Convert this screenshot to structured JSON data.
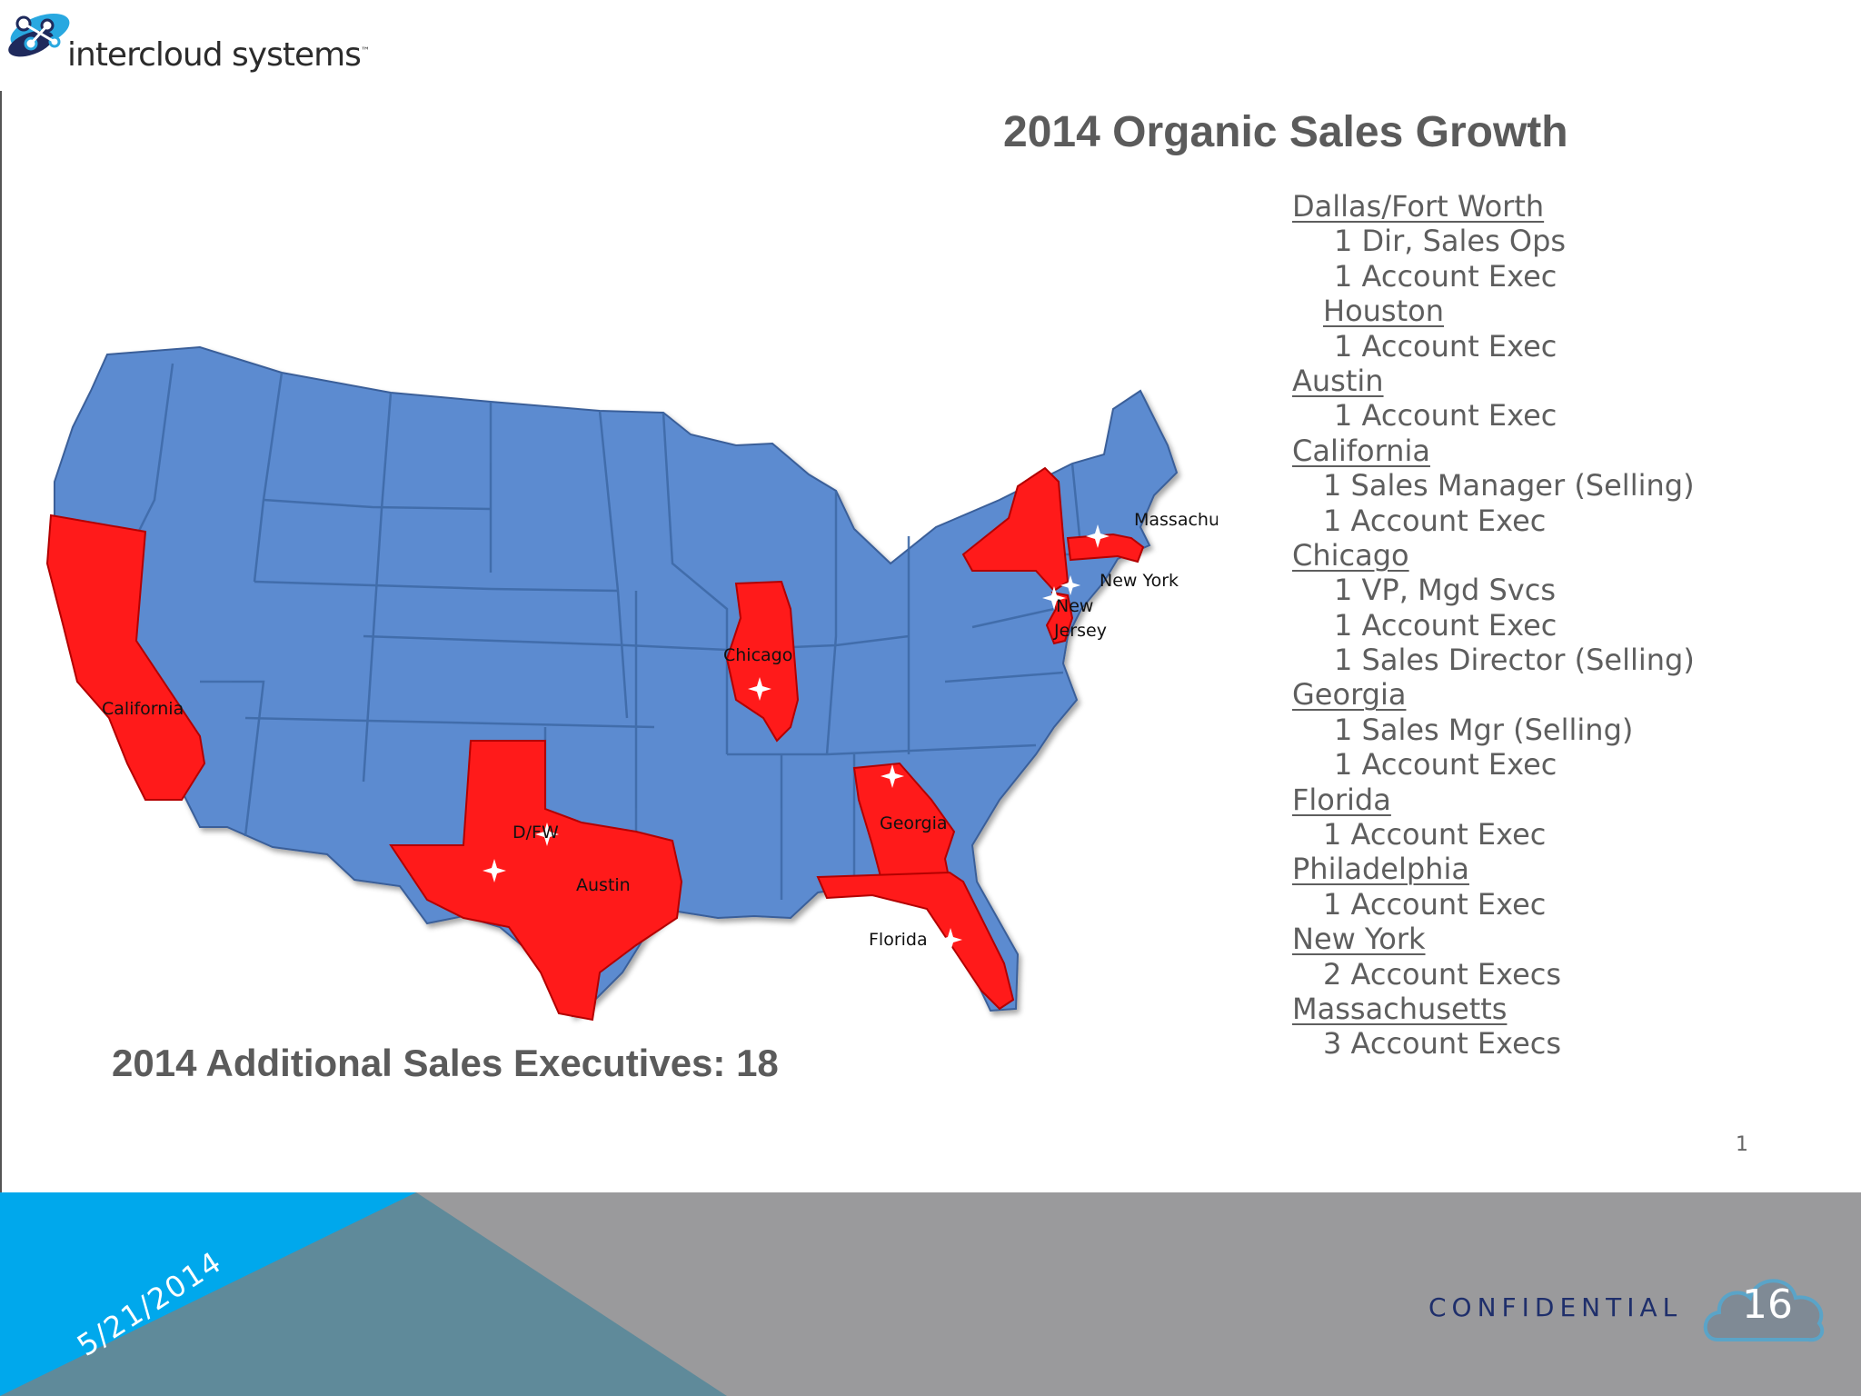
{
  "logo": {
    "text": "intercloud systems",
    "mark": "™",
    "icon": "network-nodes-icon"
  },
  "slide": {
    "title": "2014 Organic Sales Growth",
    "summary": "2014 Additional Sales Executives: 18",
    "inner_page_number": "1"
  },
  "map": {
    "highlight_color": "#ff1a1a",
    "base_color": "#5b8bd0",
    "labels": {
      "california": "California",
      "dfw": "D/FW",
      "austin": "Austin",
      "chicago": "Chicago",
      "georgia": "Georgia",
      "florida": "Florida",
      "massachusetts": "Massachusetts",
      "new_york": "New York",
      "new_jersey_1": "New",
      "new_jersey_2": "Jersey"
    }
  },
  "hiring_list": [
    {
      "text": "Dallas/Fort Worth",
      "kind": "location"
    },
    {
      "text": "1  Dir, Sales Ops",
      "kind": "role"
    },
    {
      "text": "1 Account Exec",
      "kind": "role"
    },
    {
      "text": "Houston",
      "kind": "sublocation"
    },
    {
      "text": "1 Account Exec",
      "kind": "role"
    },
    {
      "text": "Austin",
      "kind": "location"
    },
    {
      "text": "1 Account Exec",
      "kind": "role"
    },
    {
      "text": "California",
      "kind": "location"
    },
    {
      "text": "1 Sales Manager (Selling)",
      "kind": "role2"
    },
    {
      "text": "1 Account Exec",
      "kind": "role2"
    },
    {
      "text": "Chicago",
      "kind": "location"
    },
    {
      "text": "1 VP, Mgd Svcs",
      "kind": "role"
    },
    {
      "text": "1 Account Exec",
      "kind": "role"
    },
    {
      "text": "1 Sales Director (Selling)",
      "kind": "role"
    },
    {
      "text": "Georgia",
      "kind": "location"
    },
    {
      "text": "1 Sales Mgr (Selling)",
      "kind": "role"
    },
    {
      "text": "1 Account Exec",
      "kind": "role"
    },
    {
      "text": "Florida",
      "kind": "location"
    },
    {
      "text": "1  Account Exec",
      "kind": "role2"
    },
    {
      "text": "Philadelphia",
      "kind": "location"
    },
    {
      "text": "1 Account Exec",
      "kind": "role2"
    },
    {
      "text": "New York",
      "kind": "location"
    },
    {
      "text": "2 Account Execs",
      "kind": "role2"
    },
    {
      "text": "Massachusetts",
      "kind": "location"
    },
    {
      "text": "3 Account Execs",
      "kind": "role2"
    }
  ],
  "footer": {
    "date": "5/21/2014",
    "confidential": "CONFIDENTIAL",
    "slide_number": "16",
    "cloud_icon": "cloud-icon",
    "colors": {
      "blue": "#00a8ec",
      "teal": "#5f8a9a",
      "gray": "#9a9a9c"
    }
  }
}
